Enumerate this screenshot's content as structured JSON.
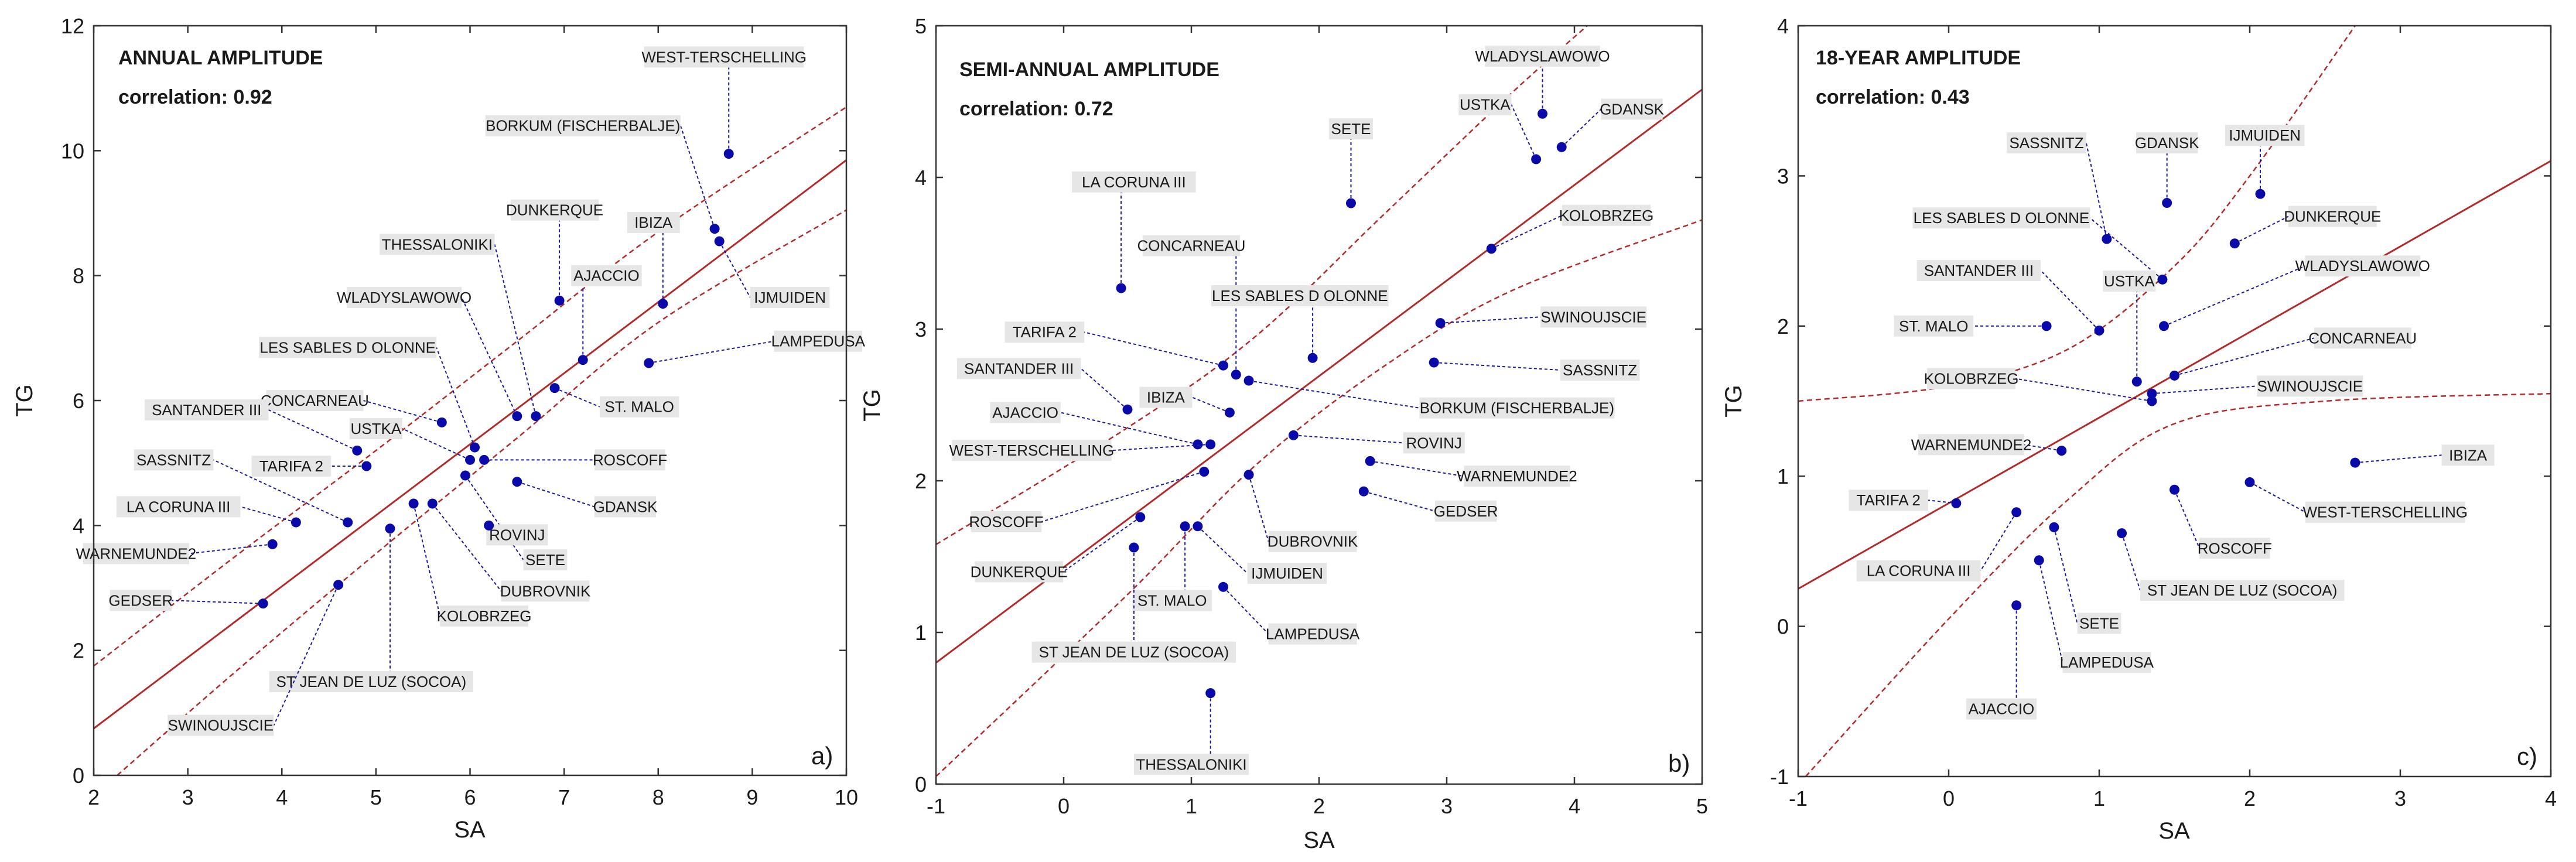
{
  "chart_data": [
    {
      "type": "scatter",
      "title": "ANNUAL AMPLITUDE",
      "correlation_text": "correlation: 0.92",
      "panel_letter": "a)",
      "xlabel": "SA",
      "ylabel": "TG",
      "xlim": [
        2,
        10
      ],
      "ylim": [
        0,
        12
      ],
      "xticks": [
        2,
        3,
        4,
        5,
        6,
        7,
        8,
        9,
        10
      ],
      "yticks": [
        0,
        2,
        4,
        6,
        8,
        10,
        12
      ],
      "colors": {
        "points": "#0a0aa8",
        "fit": "#b22a2a",
        "leader": "#1a1a9a",
        "label_bg": "#e6e6e6"
      },
      "fit_line": [
        [
          2.0,
          0.75
        ],
        [
          10.0,
          9.85
        ]
      ],
      "confidence_upper": [
        [
          2.0,
          1.75
        ],
        [
          3.5,
          3.5
        ],
        [
          5.0,
          5.2
        ],
        [
          6.5,
          6.95
        ],
        [
          8.0,
          8.7
        ],
        [
          10.0,
          10.7
        ]
      ],
      "confidence_lower": [
        [
          2.25,
          0.0
        ],
        [
          3.5,
          1.65
        ],
        [
          5.0,
          3.55
        ],
        [
          6.5,
          5.4
        ],
        [
          8.0,
          7.25
        ],
        [
          10.0,
          9.05
        ]
      ],
      "points": [
        {
          "name": "WEST-TERSCHELLING",
          "x": 8.75,
          "y": 9.95,
          "lx": 8.7,
          "ly": 11.5
        },
        {
          "name": "BORKUM (FISCHERBALJE)",
          "x": 8.6,
          "y": 8.75,
          "lx": 7.2,
          "ly": 10.4
        },
        {
          "name": "IJMUIDEN",
          "x": 8.65,
          "y": 8.55,
          "lx": 9.4,
          "ly": 7.65
        },
        {
          "name": "DUNKERQUE",
          "x": 6.95,
          "y": 7.6,
          "lx": 6.9,
          "ly": 9.05
        },
        {
          "name": "IBIZA",
          "x": 8.05,
          "y": 7.55,
          "lx": 7.95,
          "ly": 8.85
        },
        {
          "name": "LAMPEDUSA",
          "x": 7.9,
          "y": 6.6,
          "lx": 9.7,
          "ly": 6.95
        },
        {
          "name": "AJACCIO",
          "x": 7.2,
          "y": 6.65,
          "lx": 7.45,
          "ly": 8.0
        },
        {
          "name": "THESSALONIKI",
          "x": 6.7,
          "y": 5.75,
          "lx": 5.65,
          "ly": 8.5
        },
        {
          "name": "WLADYSLAWOWO",
          "x": 6.5,
          "y": 5.75,
          "lx": 5.3,
          "ly": 7.65
        },
        {
          "name": "LES SABLES D OLONNE",
          "x": 6.05,
          "y": 5.25,
          "lx": 4.7,
          "ly": 6.85
        },
        {
          "name": "ST. MALO",
          "x": 6.9,
          "y": 6.2,
          "lx": 7.8,
          "ly": 5.9
        },
        {
          "name": "CONCARNEAU",
          "x": 5.7,
          "y": 5.65,
          "lx": 4.35,
          "ly": 6.0
        },
        {
          "name": "USTKA",
          "x": 6.0,
          "y": 5.05,
          "lx": 5.0,
          "ly": 5.55
        },
        {
          "name": "ROSCOFF",
          "x": 6.15,
          "y": 5.05,
          "lx": 7.7,
          "ly": 5.05
        },
        {
          "name": "SANTANDER III",
          "x": 4.8,
          "y": 5.2,
          "lx": 3.2,
          "ly": 5.85
        },
        {
          "name": "TARIFA 2",
          "x": 4.9,
          "y": 4.95,
          "lx": 4.1,
          "ly": 4.95
        },
        {
          "name": "GDANSK",
          "x": 6.5,
          "y": 4.7,
          "lx": 7.65,
          "ly": 4.3
        },
        {
          "name": "SASSNITZ",
          "x": 4.7,
          "y": 4.05,
          "lx": 2.85,
          "ly": 5.05
        },
        {
          "name": "SETE",
          "x": 5.95,
          "y": 4.8,
          "lx": 6.8,
          "ly": 3.45
        },
        {
          "name": "LA CORUNA III",
          "x": 4.15,
          "y": 4.05,
          "lx": 2.9,
          "ly": 4.3
        },
        {
          "name": "KOLOBRZEG",
          "x": 5.4,
          "y": 4.35,
          "lx": 6.15,
          "ly": 2.55
        },
        {
          "name": "DUBROVNIK",
          "x": 5.6,
          "y": 4.35,
          "lx": 6.8,
          "ly": 2.95
        },
        {
          "name": "ROVINJ",
          "x": 6.2,
          "y": 4.0,
          "lx": 6.5,
          "ly": 3.85
        },
        {
          "name": "ST JEAN DE LUZ (SOCOA)",
          "x": 5.15,
          "y": 3.95,
          "lx": 4.95,
          "ly": 1.5
        },
        {
          "name": "WARNEMUNDE2",
          "x": 3.9,
          "y": 3.7,
          "lx": 2.45,
          "ly": 3.55
        },
        {
          "name": "SWINOUJSCIE",
          "x": 4.6,
          "y": 3.05,
          "lx": 3.35,
          "ly": 0.8
        },
        {
          "name": "GEDSER",
          "x": 3.8,
          "y": 2.75,
          "lx": 2.5,
          "ly": 2.8
        }
      ]
    },
    {
      "type": "scatter",
      "title": "SEMI-ANNUAL AMPLITUDE",
      "correlation_text": "correlation: 0.72",
      "panel_letter": "b)",
      "xlabel": "SA",
      "ylabel": "TG",
      "xlim": [
        -1,
        5
      ],
      "ylim": [
        0,
        5
      ],
      "xticks": [
        -1,
        0,
        1,
        2,
        3,
        4,
        5
      ],
      "yticks": [
        0,
        1,
        2,
        3,
        4,
        5
      ],
      "colors": {
        "points": "#0a0aa8",
        "fit": "#b22a2a",
        "leader": "#1a1a9a",
        "label_bg": "#e6e6e6"
      },
      "fit_line": [
        [
          -1.0,
          0.8
        ],
        [
          5.0,
          4.58
        ]
      ],
      "confidence_upper": [
        [
          -1.0,
          1.58
        ],
        [
          0.5,
          2.35
        ],
        [
          1.5,
          2.95
        ],
        [
          2.5,
          3.75
        ],
        [
          3.5,
          4.55
        ],
        [
          4.1,
          5.0
        ]
      ],
      "confidence_lower": [
        [
          -1.0,
          0.05
        ],
        [
          0.5,
          1.25
        ],
        [
          1.5,
          2.1
        ],
        [
          2.5,
          2.75
        ],
        [
          3.5,
          3.25
        ],
        [
          5.0,
          3.72
        ]
      ],
      "points": [
        {
          "name": "WLADYSLAWOWO",
          "x": 3.75,
          "y": 4.42,
          "lx": 3.75,
          "ly": 4.8
        },
        {
          "name": "USTKA",
          "x": 3.7,
          "y": 4.12,
          "lx": 3.3,
          "ly": 4.48
        },
        {
          "name": "GDANSK",
          "x": 3.9,
          "y": 4.2,
          "lx": 4.45,
          "ly": 4.45
        },
        {
          "name": "SETE",
          "x": 2.25,
          "y": 3.83,
          "lx": 2.25,
          "ly": 4.32
        },
        {
          "name": "LA CORUNA III",
          "x": 0.45,
          "y": 3.27,
          "lx": 0.55,
          "ly": 3.97
        },
        {
          "name": "CONCARNEAU",
          "x": 1.35,
          "y": 2.7,
          "lx": 1.0,
          "ly": 3.55
        },
        {
          "name": "KOLOBRZEG",
          "x": 3.35,
          "y": 3.53,
          "lx": 4.25,
          "ly": 3.75
        },
        {
          "name": "LES SABLES D OLONNE",
          "x": 1.95,
          "y": 2.81,
          "lx": 1.85,
          "ly": 3.22
        },
        {
          "name": "TARIFA 2",
          "x": 1.25,
          "y": 2.76,
          "lx": -0.15,
          "ly": 2.98
        },
        {
          "name": "SWINOUJSCIE",
          "x": 2.95,
          "y": 3.04,
          "lx": 4.15,
          "ly": 3.08
        },
        {
          "name": "SANTANDER III",
          "x": 0.5,
          "y": 2.47,
          "lx": -0.35,
          "ly": 2.74
        },
        {
          "name": "SASSNITZ",
          "x": 2.9,
          "y": 2.78,
          "lx": 4.2,
          "ly": 2.73
        },
        {
          "name": "IBIZA",
          "x": 1.3,
          "y": 2.45,
          "lx": 0.8,
          "ly": 2.55
        },
        {
          "name": "BORKUM (FISCHERBALJE)",
          "x": 1.45,
          "y": 2.66,
          "lx": 3.55,
          "ly": 2.48
        },
        {
          "name": "AJACCIO",
          "x": 1.05,
          "y": 2.24,
          "lx": -0.3,
          "ly": 2.45
        },
        {
          "name": "WEST-TERSCHELLING",
          "x": 1.15,
          "y": 2.24,
          "lx": -0.25,
          "ly": 2.2
        },
        {
          "name": "ROVINJ",
          "x": 1.8,
          "y": 2.3,
          "lx": 2.9,
          "ly": 2.25
        },
        {
          "name": "WARNEMUNDE2",
          "x": 2.4,
          "y": 2.13,
          "lx": 3.55,
          "ly": 2.03
        },
        {
          "name": "ROSCOFF",
          "x": 1.1,
          "y": 2.06,
          "lx": -0.45,
          "ly": 1.73
        },
        {
          "name": "GEDSER",
          "x": 2.35,
          "y": 1.93,
          "lx": 3.15,
          "ly": 1.8
        },
        {
          "name": "DUBROVNIK",
          "x": 1.45,
          "y": 2.04,
          "lx": 1.95,
          "ly": 1.6
        },
        {
          "name": "DUNKERQUE",
          "x": 0.6,
          "y": 1.76,
          "lx": -0.35,
          "ly": 1.4
        },
        {
          "name": "ST. MALO",
          "x": 0.95,
          "y": 1.7,
          "lx": 0.85,
          "ly": 1.21
        },
        {
          "name": "IJMUIDEN",
          "x": 1.05,
          "y": 1.7,
          "lx": 1.75,
          "ly": 1.39
        },
        {
          "name": "ST JEAN DE LUZ (SOCOA)",
          "x": 0.55,
          "y": 1.56,
          "lx": 0.55,
          "ly": 0.87
        },
        {
          "name": "LAMPEDUSA",
          "x": 1.25,
          "y": 1.3,
          "lx": 1.95,
          "ly": 0.99
        },
        {
          "name": "THESSALONIKI",
          "x": 1.15,
          "y": 0.6,
          "lx": 1.0,
          "ly": 0.13
        }
      ]
    },
    {
      "type": "scatter",
      "title": "18-YEAR AMPLITUDE",
      "correlation_text": "correlation: 0.43",
      "panel_letter": "c)",
      "xlabel": "SA",
      "ylabel": "TG",
      "xlim": [
        -1,
        4
      ],
      "ylim": [
        -1,
        4
      ],
      "xticks": [
        -1,
        0,
        1,
        2,
        3,
        4
      ],
      "yticks": [
        -1,
        0,
        1,
        2,
        3,
        4
      ],
      "colors": {
        "points": "#0a0aa8",
        "fit": "#b22a2a",
        "leader": "#1a1a9a",
        "label_bg": "#e6e6e6"
      },
      "fit_line": [
        [
          -1.0,
          0.25
        ],
        [
          4.0,
          3.1
        ]
      ],
      "confidence_upper": [
        [
          -1.0,
          1.5
        ],
        [
          0.0,
          1.6
        ],
        [
          0.8,
          1.85
        ],
        [
          1.5,
          2.4
        ],
        [
          2.0,
          3.0
        ],
        [
          2.7,
          4.0
        ]
      ],
      "confidence_lower": [
        [
          -0.95,
          -1.0
        ],
        [
          0.0,
          0.05
        ],
        [
          0.8,
          0.85
        ],
        [
          1.5,
          1.35
        ],
        [
          2.5,
          1.5
        ],
        [
          4.0,
          1.55
        ]
      ],
      "points": [
        {
          "name": "SASSNITZ",
          "x": 1.05,
          "y": 2.58,
          "lx": 0.65,
          "ly": 3.22
        },
        {
          "name": "GDANSK",
          "x": 1.45,
          "y": 2.82,
          "lx": 1.45,
          "ly": 3.22
        },
        {
          "name": "IJMUIDEN",
          "x": 2.07,
          "y": 2.88,
          "lx": 2.1,
          "ly": 3.27
        },
        {
          "name": "LES SABLES D OLONNE",
          "x": 1.42,
          "y": 2.31,
          "lx": 0.35,
          "ly": 2.72
        },
        {
          "name": "DUNKERQUE",
          "x": 1.9,
          "y": 2.55,
          "lx": 2.55,
          "ly": 2.73
        },
        {
          "name": "WLADYSLAWOWO",
          "x": 1.43,
          "y": 2.0,
          "lx": 2.75,
          "ly": 2.4
        },
        {
          "name": "SANTANDER III",
          "x": 1.0,
          "y": 1.97,
          "lx": 0.2,
          "ly": 2.37
        },
        {
          "name": "USTKA",
          "x": 1.25,
          "y": 1.63,
          "lx": 1.2,
          "ly": 2.3
        },
        {
          "name": "ST. MALO",
          "x": 0.65,
          "y": 2.0,
          "lx": -0.1,
          "ly": 2.0
        },
        {
          "name": "CONCARNEAU",
          "x": 1.5,
          "y": 1.67,
          "lx": 2.75,
          "ly": 1.92
        },
        {
          "name": "KOLOBRZEG",
          "x": 1.35,
          "y": 1.5,
          "lx": 0.15,
          "ly": 1.65
        },
        {
          "name": "SWINOUJSCIE",
          "x": 1.35,
          "y": 1.55,
          "lx": 2.4,
          "ly": 1.6
        },
        {
          "name": "WARNEMUNDE2",
          "x": 0.75,
          "y": 1.17,
          "lx": 0.15,
          "ly": 1.21
        },
        {
          "name": "IBIZA",
          "x": 2.7,
          "y": 1.09,
          "lx": 3.45,
          "ly": 1.14
        },
        {
          "name": "TARIFA 2",
          "x": 0.05,
          "y": 0.82,
          "lx": -0.4,
          "ly": 0.84
        },
        {
          "name": "WEST-TERSCHELLING",
          "x": 2.0,
          "y": 0.96,
          "lx": 2.9,
          "ly": 0.76
        },
        {
          "name": "LA CORUNA III",
          "x": 0.45,
          "y": 0.76,
          "lx": -0.2,
          "ly": 0.37
        },
        {
          "name": "ROSCOFF",
          "x": 1.5,
          "y": 0.91,
          "lx": 1.9,
          "ly": 0.52
        },
        {
          "name": "ST JEAN DE LUZ (SOCOA)",
          "x": 1.15,
          "y": 0.62,
          "lx": 1.95,
          "ly": 0.24
        },
        {
          "name": "SETE",
          "x": 0.7,
          "y": 0.66,
          "lx": 1.0,
          "ly": 0.02
        },
        {
          "name": "LAMPEDUSA",
          "x": 0.6,
          "y": 0.44,
          "lx": 1.05,
          "ly": -0.24
        },
        {
          "name": "AJACCIO",
          "x": 0.45,
          "y": 0.14,
          "lx": 0.35,
          "ly": -0.55
        }
      ]
    }
  ]
}
